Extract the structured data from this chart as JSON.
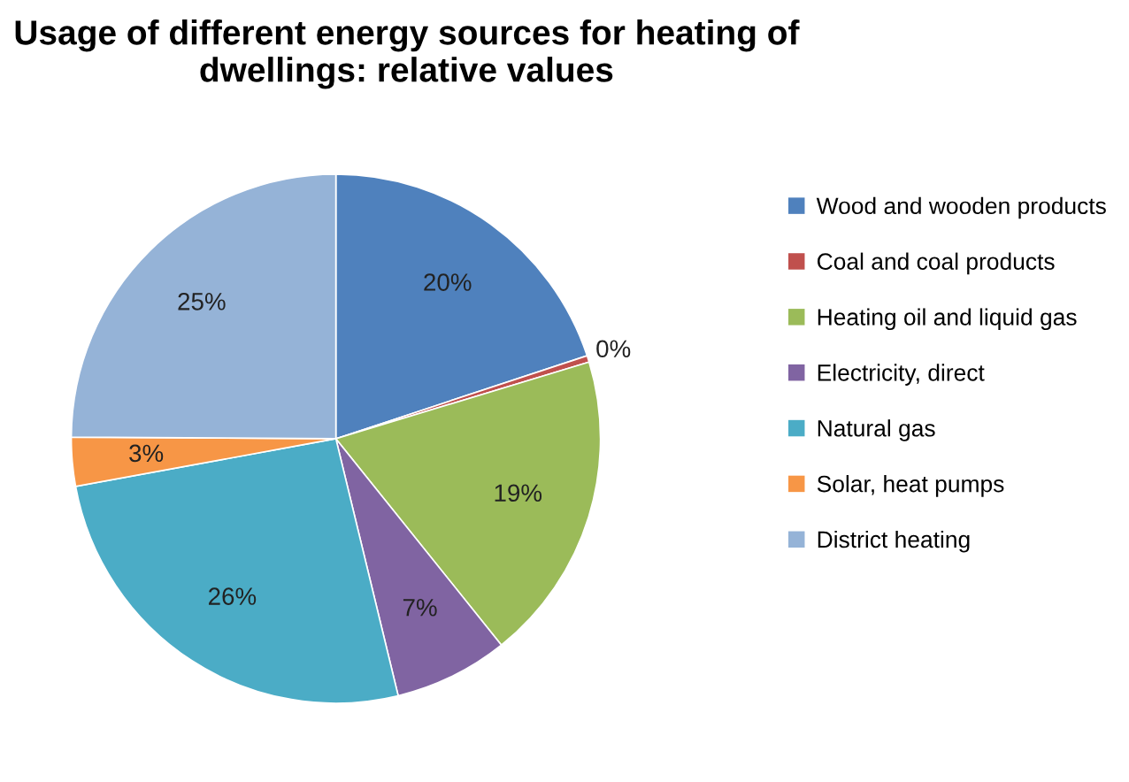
{
  "chart_data": {
    "type": "pie",
    "title": "Usage of different energy sources for heating of dwellings: relative values",
    "categories": [
      "Wood and wooden products",
      "Coal and coal products",
      "Heating oil and liquid gas",
      "Electricity, direct",
      "Natural gas",
      "Solar, heat pumps",
      "District heating"
    ],
    "values": [
      20,
      0.4,
      19,
      7,
      26,
      3,
      25
    ],
    "colors": [
      "#4f81bd",
      "#c0504d",
      "#9bbb59",
      "#8064a2",
      "#4bacc6",
      "#f79646",
      "#95b3d7"
    ],
    "value_labels": [
      "20%",
      "0%",
      "19%",
      "7%",
      "26%",
      "3%",
      "25%"
    ],
    "legend": "right"
  }
}
